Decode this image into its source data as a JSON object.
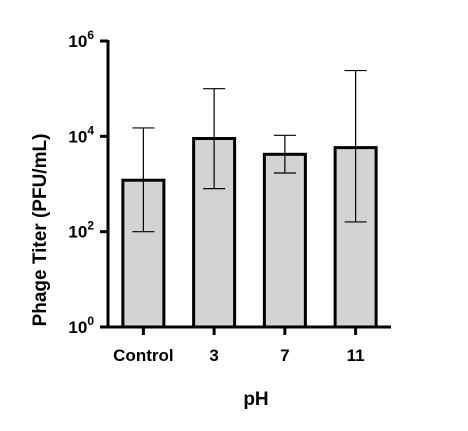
{
  "chart_data": {
    "type": "bar",
    "categories": [
      "Control",
      "3",
      "7",
      "11"
    ],
    "values": [
      1200,
      9000,
      4200,
      5800
    ],
    "error_low": [
      100,
      800,
      1700,
      160
    ],
    "error_high": [
      15000,
      100000,
      10500,
      240000
    ],
    "xlabel": "pH",
    "ylabel": "Phage Titer  (PFU/mL)",
    "yscale": "log10",
    "ylim": [
      1,
      1000000
    ],
    "yticks": [
      {
        "base": "10",
        "exp": "0",
        "value": 1
      },
      {
        "base": "10",
        "exp": "2",
        "value": 100
      },
      {
        "base": "10",
        "exp": "4",
        "value": 10000
      },
      {
        "base": "10",
        "exp": "6",
        "value": 1000000
      }
    ],
    "grid": false,
    "legend": "none",
    "colors": {
      "bar_fill": "#d3d3d3",
      "bar_stroke": "#000000",
      "axis": "#000000"
    }
  }
}
